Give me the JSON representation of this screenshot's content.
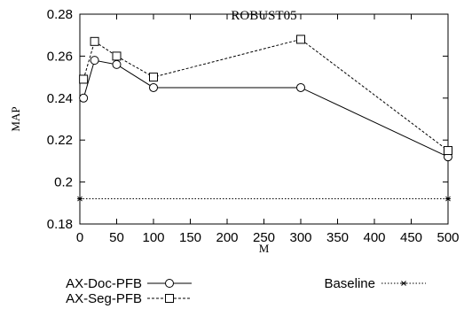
{
  "chart_data": {
    "type": "line",
    "title": "ROBUST05",
    "xlabel": "M",
    "ylabel": "MAP",
    "xlim": [
      0,
      500
    ],
    "ylim": [
      0.18,
      0.28
    ],
    "xticks": [
      0,
      50,
      100,
      150,
      200,
      250,
      300,
      350,
      400,
      450,
      500
    ],
    "yticks": [
      0.18,
      0.2,
      0.22,
      0.24,
      0.26,
      0.28
    ],
    "xtick_labels": [
      "0",
      "50",
      "100",
      "150",
      "200",
      "250",
      "300",
      "350",
      "400",
      "450",
      "500"
    ],
    "ytick_labels": [
      "0.18",
      "0.2",
      "0.22",
      "0.24",
      "0.26",
      "0.28"
    ],
    "grid": false,
    "legend_position": "below",
    "series": [
      {
        "name": "AX-Doc-PFB",
        "line_style": "solid",
        "marker": "circle",
        "x": [
          5,
          20,
          50,
          100,
          300,
          500
        ],
        "y": [
          0.24,
          0.258,
          0.256,
          0.245,
          0.245,
          0.212
        ]
      },
      {
        "name": "AX-Seg-PFB",
        "line_style": "dashed",
        "marker": "square",
        "x": [
          5,
          20,
          50,
          100,
          300,
          500
        ],
        "y": [
          0.249,
          0.267,
          0.26,
          0.25,
          0.268,
          0.215
        ]
      },
      {
        "name": "Baseline",
        "line_style": "dotted",
        "marker": "star",
        "x": [
          0,
          500
        ],
        "y": [
          0.192,
          0.192
        ]
      }
    ]
  }
}
